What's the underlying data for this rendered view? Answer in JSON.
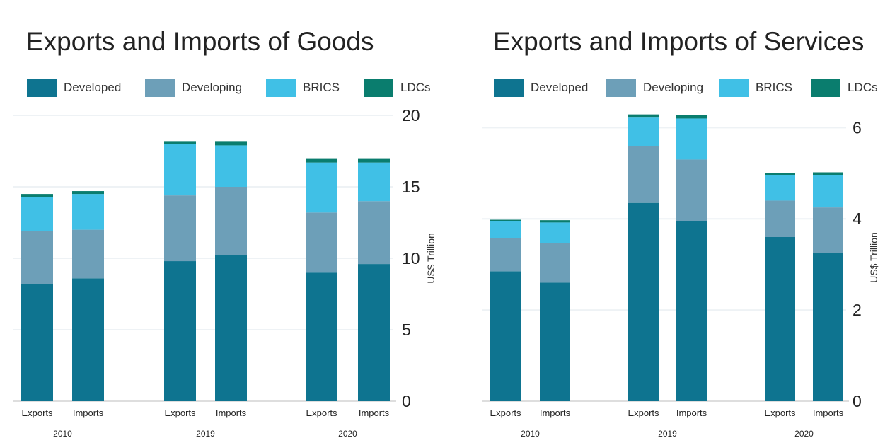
{
  "colors": {
    "Developed": "#0e7490",
    "Developing": "#6d9fb8",
    "BRICS": "#40c0e6",
    "LDCs": "#0a7d6e"
  },
  "legend": [
    "Developed",
    "Developing",
    "BRICS",
    "LDCs"
  ],
  "chart_data": [
    {
      "type": "bar",
      "stacked": true,
      "title": "Exports and Imports of Goods",
      "ylabel": "US$ Trillion",
      "ylim": [
        0,
        20
      ],
      "yticks": [
        0,
        5,
        10,
        15,
        20
      ],
      "years": [
        "2010",
        "2019",
        "2020"
      ],
      "bar_labels": [
        "Exports",
        "Imports",
        "Exports",
        "Imports",
        "Exports",
        "Imports"
      ],
      "series": [
        {
          "name": "Developed",
          "values": [
            8.2,
            8.6,
            9.8,
            10.2,
            9.0,
            9.6
          ]
        },
        {
          "name": "Developing",
          "values": [
            3.7,
            3.4,
            4.6,
            4.8,
            4.2,
            4.4
          ]
        },
        {
          "name": "BRICS",
          "values": [
            2.4,
            2.5,
            3.6,
            2.9,
            3.5,
            2.7
          ]
        },
        {
          "name": "LDCs",
          "values": [
            0.2,
            0.2,
            0.2,
            0.3,
            0.3,
            0.3
          ]
        }
      ]
    },
    {
      "type": "bar",
      "stacked": true,
      "title": "Exports and Imports of Services",
      "ylabel": "US$ Trillion",
      "ylim": [
        0,
        6.3
      ],
      "yticks": [
        0,
        2,
        4,
        6
      ],
      "years": [
        "2010",
        "2019",
        "2020"
      ],
      "bar_labels": [
        "Exports",
        "Imports",
        "Exports",
        "Imports",
        "Exports",
        "Imports"
      ],
      "series": [
        {
          "name": "Developed",
          "values": [
            2.85,
            2.6,
            4.35,
            3.95,
            3.6,
            3.25
          ]
        },
        {
          "name": "Developing",
          "values": [
            0.72,
            0.87,
            1.25,
            1.35,
            0.8,
            1.0
          ]
        },
        {
          "name": "BRICS",
          "values": [
            0.38,
            0.45,
            0.62,
            0.9,
            0.55,
            0.7
          ]
        },
        {
          "name": "LDCs",
          "values": [
            0.03,
            0.05,
            0.07,
            0.08,
            0.05,
            0.07
          ]
        }
      ]
    }
  ]
}
